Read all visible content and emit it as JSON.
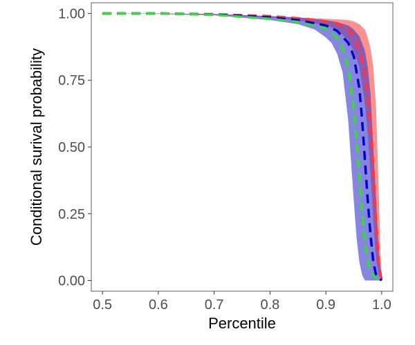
{
  "chart_data": {
    "type": "area",
    "xlabel": "Percentile",
    "ylabel": "Conditional surival probability",
    "xlim": [
      0.48,
      1.02
    ],
    "ylim": [
      -0.04,
      1.04
    ],
    "xticks": [
      0.5,
      0.6,
      0.7,
      0.8,
      0.9,
      1.0
    ],
    "xtick_labels": [
      "0.5",
      "0.6",
      "0.7",
      "0.8",
      "0.9",
      "1.0"
    ],
    "yticks": [
      0.0,
      0.25,
      0.5,
      0.75,
      1.0
    ],
    "ytick_labels": [
      "0.00",
      "0.25",
      "0.50",
      "0.75",
      "1.00"
    ],
    "grid": false,
    "bands": [
      {
        "color": "#ff6b6b",
        "opacity": 0.75,
        "upper": [
          [
            0.5,
            1.0
          ],
          [
            0.6,
            1.0
          ],
          [
            0.7,
            0.998
          ],
          [
            0.8,
            0.99
          ],
          [
            0.85,
            0.985
          ],
          [
            0.9,
            0.98
          ],
          [
            0.92,
            0.978
          ],
          [
            0.94,
            0.975
          ],
          [
            0.95,
            0.97
          ],
          [
            0.96,
            0.96
          ],
          [
            0.97,
            0.94
          ],
          [
            0.975,
            0.91
          ],
          [
            0.98,
            0.87
          ],
          [
            0.985,
            0.8
          ],
          [
            0.99,
            0.65
          ],
          [
            0.993,
            0.45
          ],
          [
            0.996,
            0.25
          ],
          [
            0.998,
            0.1
          ],
          [
            1.0,
            0.02
          ]
        ],
        "lower": [
          [
            0.5,
            1.0
          ],
          [
            0.6,
            0.999
          ],
          [
            0.7,
            0.995
          ],
          [
            0.8,
            0.985
          ],
          [
            0.85,
            0.975
          ],
          [
            0.9,
            0.955
          ],
          [
            0.92,
            0.94
          ],
          [
            0.94,
            0.9
          ],
          [
            0.95,
            0.86
          ],
          [
            0.96,
            0.8
          ],
          [
            0.97,
            0.66
          ],
          [
            0.975,
            0.55
          ],
          [
            0.98,
            0.4
          ],
          [
            0.985,
            0.22
          ],
          [
            0.99,
            0.08
          ],
          [
            0.995,
            0.02
          ],
          [
            1.0,
            0.0
          ]
        ]
      },
      {
        "color": "#3b3bcc",
        "opacity": 0.62,
        "upper": [
          [
            0.5,
            1.0
          ],
          [
            0.6,
            1.0
          ],
          [
            0.7,
            0.998
          ],
          [
            0.8,
            0.99
          ],
          [
            0.85,
            0.985
          ],
          [
            0.9,
            0.975
          ],
          [
            0.92,
            0.968
          ],
          [
            0.94,
            0.955
          ],
          [
            0.95,
            0.94
          ],
          [
            0.96,
            0.915
          ],
          [
            0.97,
            0.86
          ],
          [
            0.975,
            0.8
          ],
          [
            0.98,
            0.7
          ],
          [
            0.985,
            0.5
          ],
          [
            0.99,
            0.3
          ],
          [
            0.995,
            0.1
          ],
          [
            1.0,
            0.0
          ]
        ],
        "lower": [
          [
            0.5,
            1.0
          ],
          [
            0.6,
            0.998
          ],
          [
            0.7,
            0.993
          ],
          [
            0.8,
            0.975
          ],
          [
            0.85,
            0.96
          ],
          [
            0.88,
            0.94
          ],
          [
            0.9,
            0.91
          ],
          [
            0.91,
            0.89
          ],
          [
            0.92,
            0.85
          ],
          [
            0.93,
            0.78
          ],
          [
            0.94,
            0.6
          ],
          [
            0.95,
            0.3
          ],
          [
            0.955,
            0.16
          ],
          [
            0.96,
            0.07
          ],
          [
            0.965,
            0.02
          ],
          [
            0.97,
            0.0
          ],
          [
            0.985,
            0.0
          ],
          [
            1.0,
            0.0
          ]
        ]
      }
    ],
    "series": [
      {
        "color": "#ff3344",
        "values": [
          [
            0.5,
            1.0
          ],
          [
            0.6,
            1.0
          ],
          [
            0.7,
            0.997
          ],
          [
            0.8,
            0.99
          ],
          [
            0.85,
            0.982
          ],
          [
            0.9,
            0.97
          ],
          [
            0.92,
            0.962
          ],
          [
            0.94,
            0.94
          ],
          [
            0.95,
            0.915
          ],
          [
            0.96,
            0.87
          ],
          [
            0.97,
            0.78
          ],
          [
            0.975,
            0.7
          ],
          [
            0.98,
            0.58
          ],
          [
            0.985,
            0.42
          ],
          [
            0.99,
            0.22
          ],
          [
            0.995,
            0.06
          ],
          [
            1.0,
            0.0
          ]
        ]
      },
      {
        "color": "#0000cc",
        "values": [
          [
            0.5,
            1.0
          ],
          [
            0.6,
            1.0
          ],
          [
            0.7,
            0.996
          ],
          [
            0.8,
            0.985
          ],
          [
            0.85,
            0.975
          ],
          [
            0.9,
            0.955
          ],
          [
            0.92,
            0.935
          ],
          [
            0.94,
            0.89
          ],
          [
            0.95,
            0.84
          ],
          [
            0.96,
            0.72
          ],
          [
            0.965,
            0.6
          ],
          [
            0.97,
            0.45
          ],
          [
            0.975,
            0.3
          ],
          [
            0.98,
            0.17
          ],
          [
            0.985,
            0.07
          ],
          [
            0.99,
            0.02
          ],
          [
            1.0,
            0.0
          ]
        ]
      },
      {
        "color": "#33dd33",
        "values": [
          [
            0.5,
            1.0
          ],
          [
            0.6,
            1.0
          ],
          [
            0.7,
            0.995
          ],
          [
            0.8,
            0.98
          ],
          [
            0.85,
            0.968
          ],
          [
            0.9,
            0.945
          ],
          [
            0.92,
            0.91
          ],
          [
            0.93,
            0.87
          ],
          [
            0.94,
            0.8
          ],
          [
            0.95,
            0.65
          ],
          [
            0.955,
            0.53
          ],
          [
            0.96,
            0.4
          ],
          [
            0.965,
            0.26
          ],
          [
            0.97,
            0.15
          ],
          [
            0.975,
            0.08
          ],
          [
            0.98,
            0.03
          ],
          [
            0.99,
            0.01
          ],
          [
            1.0,
            0.0
          ]
        ]
      }
    ]
  }
}
